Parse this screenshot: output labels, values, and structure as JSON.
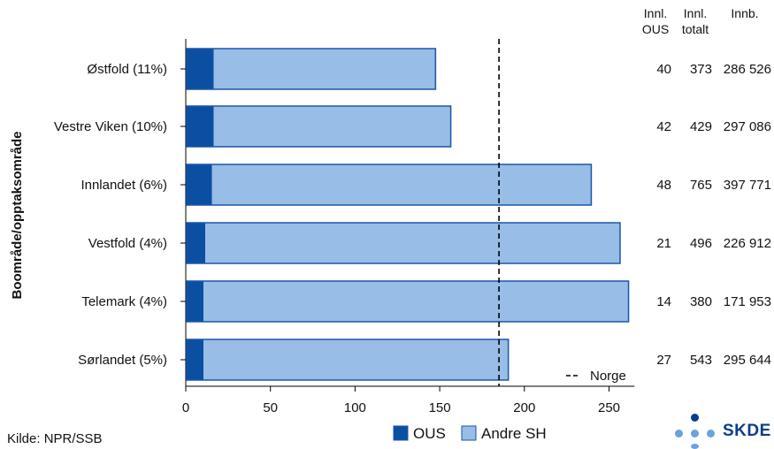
{
  "chart_data": {
    "type": "bar",
    "orientation": "horizontal",
    "stacked": true,
    "ylabel": "Boområde/opptaksområde",
    "categories": [
      "Østfold (11%)",
      "Vestre Viken (10%)",
      "Innlandet (6%)",
      "Vestfold (4%)",
      "Telemark (4%)",
      "Sørlandet (5%)"
    ],
    "series": [
      {
        "name": "OUS",
        "values": [
          16,
          16,
          15,
          11,
          10,
          10
        ],
        "color": "#0b4fa3"
      },
      {
        "name": "Andre SH",
        "values": [
          131,
          140,
          224,
          245,
          251,
          180
        ],
        "color": "#98bde6"
      }
    ],
    "xlim": [
      0,
      265
    ],
    "xticks": [
      0,
      50,
      100,
      150,
      200,
      250
    ],
    "reference_line": {
      "label": "Norge",
      "value": 185
    },
    "legend_position": "bottom",
    "table": {
      "headers": [
        [
          "Innl.",
          "OUS"
        ],
        [
          "Innl.",
          "totalt"
        ],
        [
          "Innb.",
          ""
        ]
      ],
      "rows": [
        [
          "40",
          "373",
          "286 526"
        ],
        [
          "42",
          "429",
          "297 086"
        ],
        [
          "48",
          "765",
          "397 771"
        ],
        [
          "21",
          "496",
          "226 912"
        ],
        [
          "14",
          "380",
          "171 953"
        ],
        [
          "27",
          "543",
          "295 644"
        ]
      ]
    }
  },
  "footer": {
    "source": "Kilde: NPR/SSB",
    "logo_text": "SKDE"
  },
  "colors": {
    "ous": "#0b4fa3",
    "andre_sh": "#98bde6",
    "bar_border": "#1a56a8",
    "logo_dark": "#0a3d8f",
    "logo_light": "#6aa3dc"
  }
}
